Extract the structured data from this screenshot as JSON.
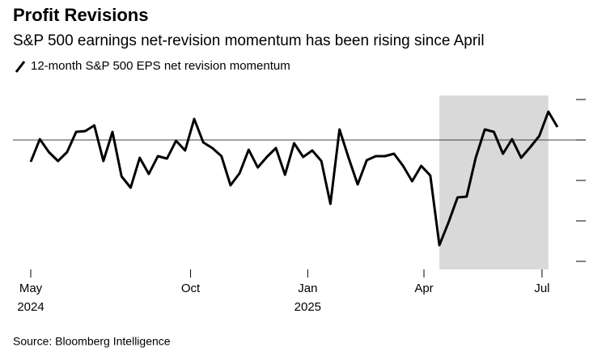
{
  "chart_data": {
    "type": "line",
    "title": "Profit Revisions",
    "subtitle": "S&P 500 earnings net-revision momentum has been rising since April",
    "source": "Source: Bloomberg Intelligence",
    "x": [
      0,
      1,
      2,
      3,
      4,
      5,
      6,
      7,
      8,
      9,
      10,
      11,
      12,
      13,
      14,
      15,
      16,
      17,
      18,
      19,
      20,
      21,
      22,
      23,
      24,
      25,
      26,
      27,
      28,
      29,
      30,
      31,
      32,
      33,
      34,
      35,
      36,
      37,
      38,
      39,
      40,
      41,
      42,
      43,
      44,
      45,
      46,
      47,
      48,
      49,
      50,
      51,
      52,
      53,
      54,
      55,
      56,
      57,
      58
    ],
    "series": [
      {
        "name": "12-month S&P 500 EPS net revision momentum",
        "color": "#000000",
        "values": [
          -0.54,
          0.02,
          -0.3,
          -0.52,
          -0.3,
          0.2,
          0.22,
          0.36,
          -0.52,
          0.2,
          -0.9,
          -1.18,
          -0.44,
          -0.84,
          -0.4,
          -0.46,
          -0.02,
          -0.26,
          0.52,
          -0.06,
          -0.2,
          -0.4,
          -1.12,
          -0.82,
          -0.24,
          -0.68,
          -0.42,
          -0.2,
          -0.86,
          -0.08,
          -0.42,
          -0.26,
          -0.52,
          -1.58,
          0.26,
          -0.44,
          -1.1,
          -0.5,
          -0.4,
          -0.4,
          -0.34,
          -0.64,
          -1.02,
          -0.64,
          -0.88,
          -2.6,
          -2.04,
          -1.42,
          -1.4,
          -0.44,
          0.26,
          0.2,
          -0.34,
          0.02,
          -0.44,
          -0.18,
          0.1,
          0.7,
          0.32
        ]
      }
    ],
    "xlim": [
      0,
      58
    ],
    "xticks": [
      {
        "value": 0,
        "label": "May 2024"
      },
      {
        "value": 17.6,
        "label": "Oct"
      },
      {
        "value": 30.5,
        "label": "Jan 2025"
      },
      {
        "value": 43.3,
        "label": "Apr"
      },
      {
        "value": 56.3,
        "label": "Jul"
      }
    ],
    "ylim": [
      -3.2,
      1.3
    ],
    "yticks": [
      1,
      0,
      -1,
      -2,
      -3
    ],
    "baseline": 0,
    "shaded_range": [
      45,
      57
    ],
    "shade_color": "#d9d9d9"
  }
}
